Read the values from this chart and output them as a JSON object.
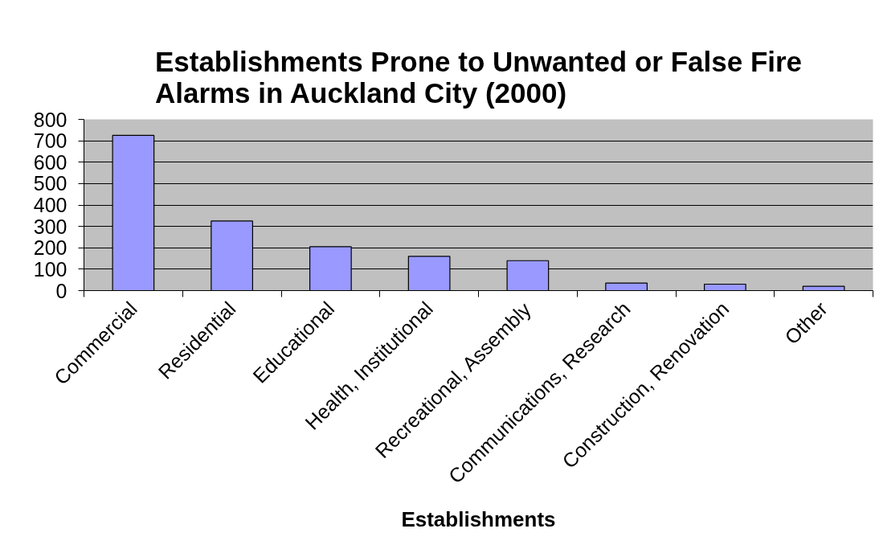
{
  "chart_data": {
    "type": "bar",
    "title": "Establishments Prone to Unwanted or False Fire Alarms in Auckland City (2000)",
    "xlabel": "Establishments",
    "categories": [
      "Commercial",
      "Residential",
      "Educational",
      "Health, Institutional",
      "Recreational, Assembly",
      "Communications, Research",
      "Construction, Renovation",
      "Other"
    ],
    "values": [
      725,
      325,
      205,
      160,
      140,
      35,
      30,
      20
    ],
    "color": "#9999ff",
    "ylim": [
      0,
      800
    ],
    "yticks": [
      0,
      100,
      200,
      300,
      400,
      500,
      600,
      700,
      800
    ],
    "grid": "y"
  }
}
